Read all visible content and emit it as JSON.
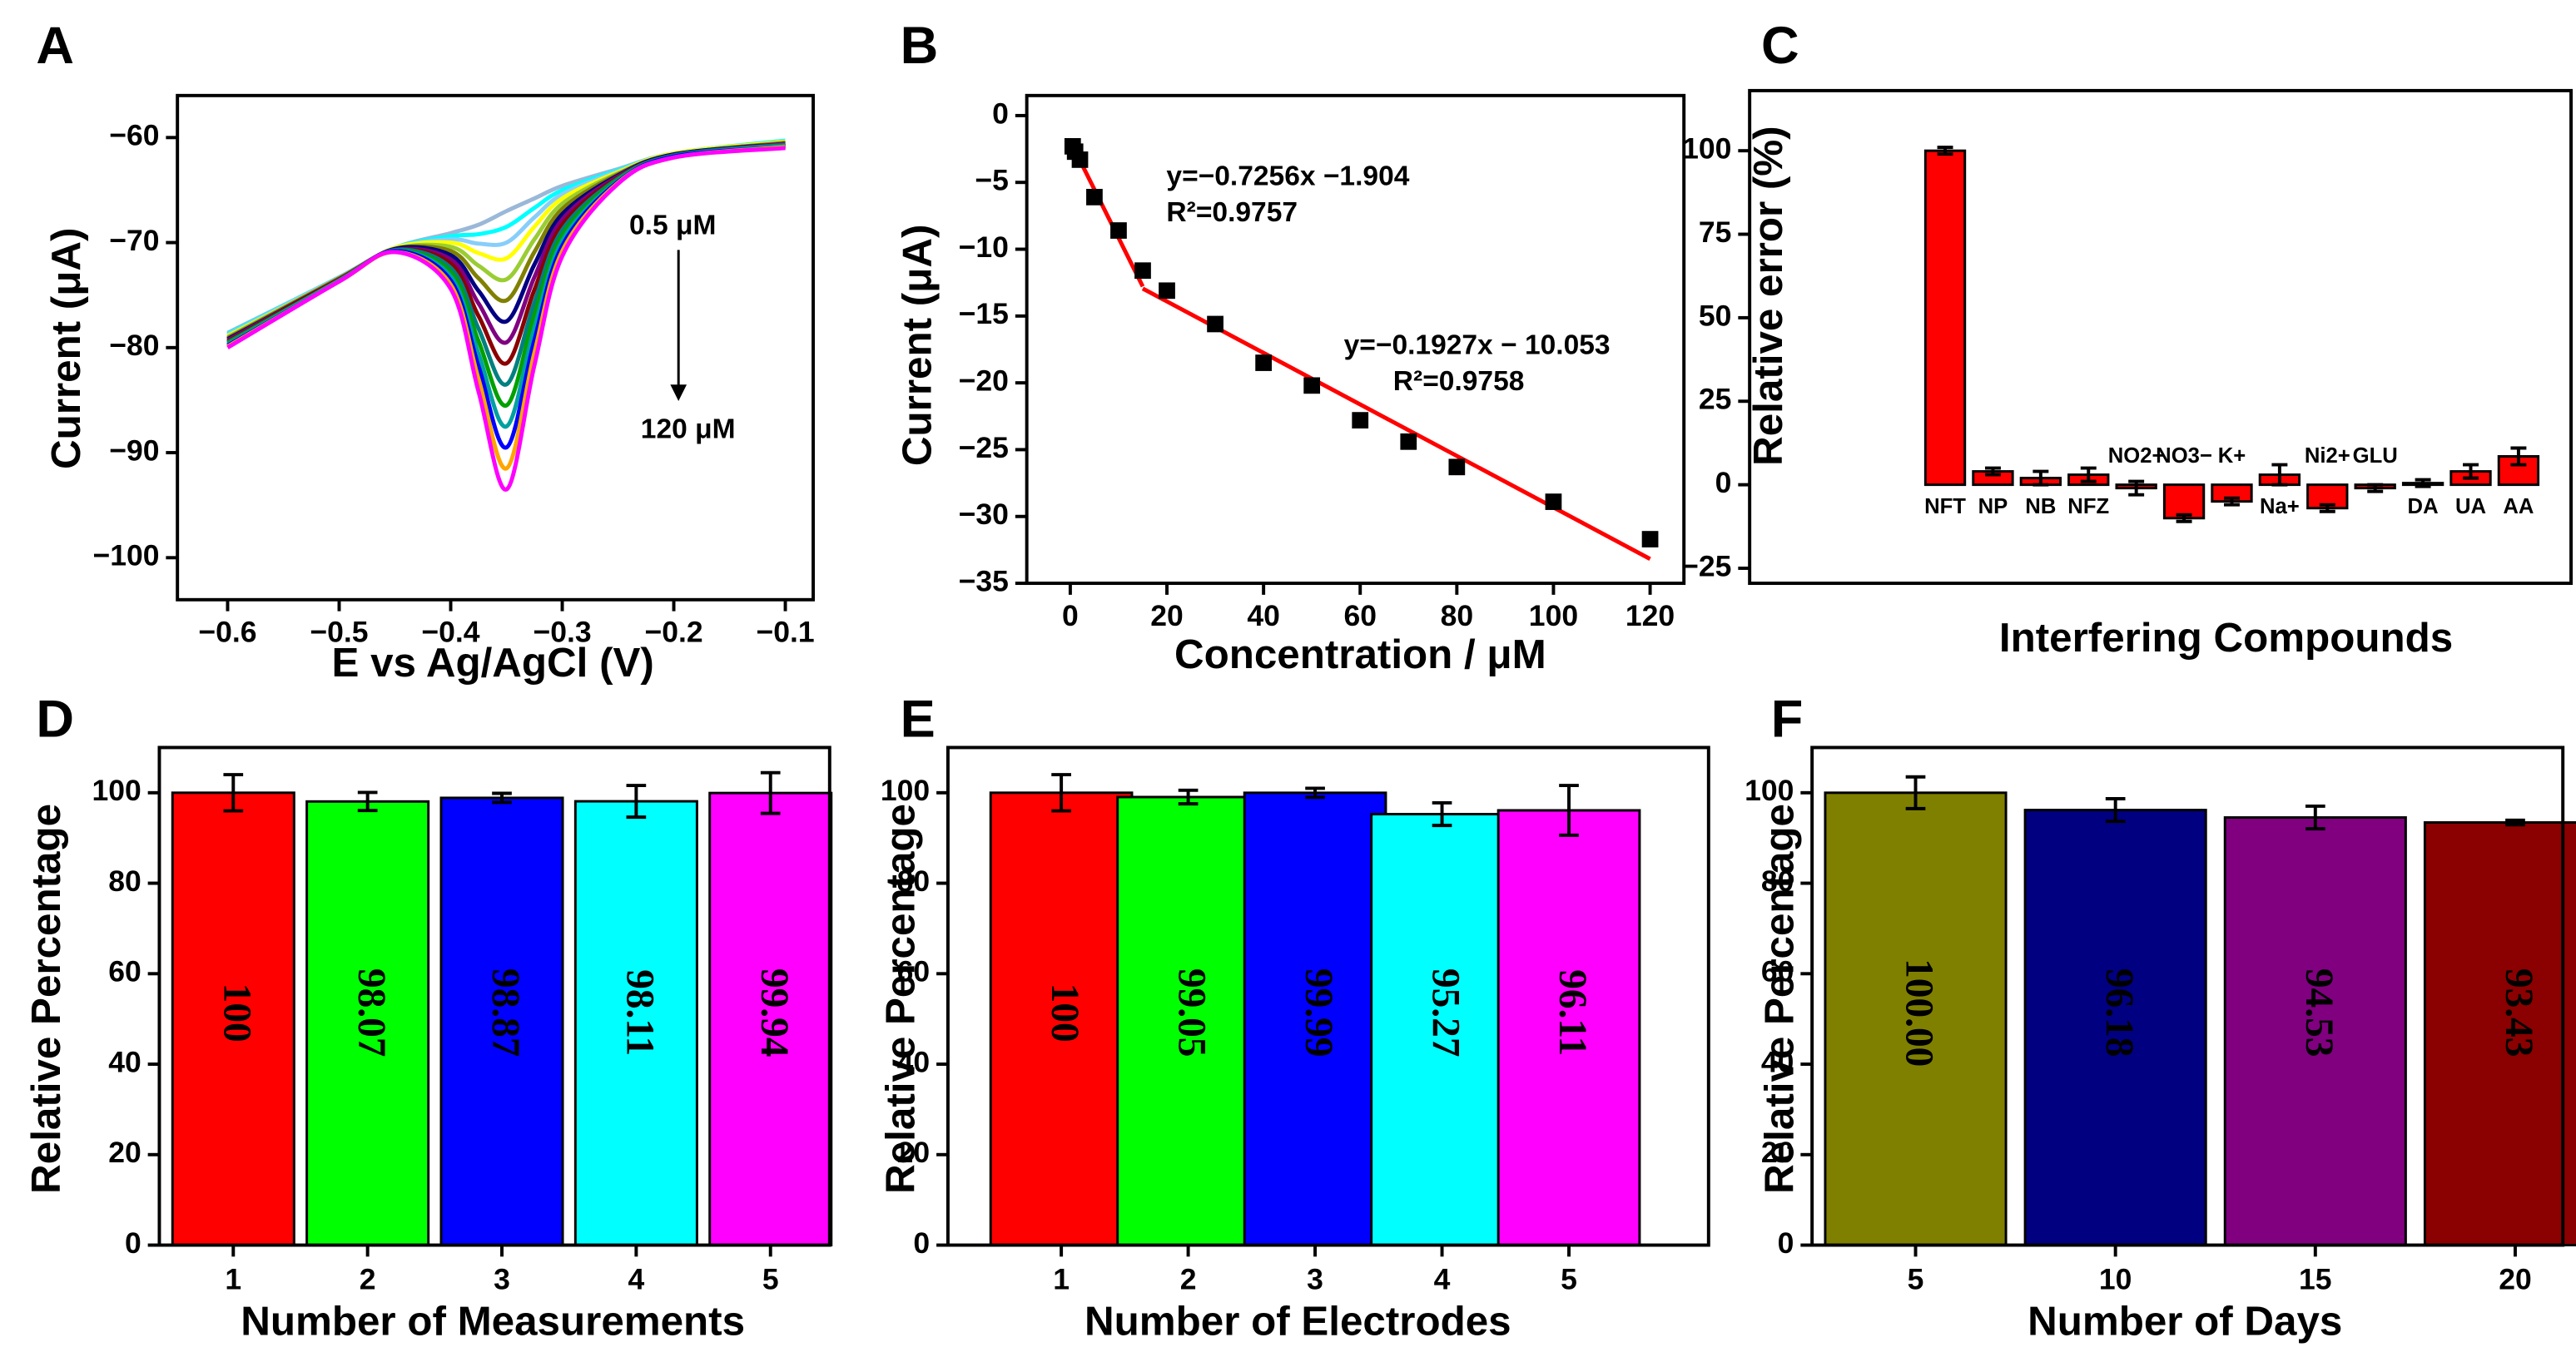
{
  "chart_data": [
    {
      "type": "line",
      "panel_label": "A",
      "x_label": "E vs Ag/AgCl (V)",
      "y_label": "Current (μA)",
      "x": [
        -0.6,
        -0.5,
        -0.45,
        -0.4,
        -0.375,
        -0.35,
        -0.325,
        -0.3,
        -0.25,
        -0.2,
        -0.1
      ],
      "series": [
        {
          "color": "#9ab8d8",
          "values": [
            -78.6,
            -73.3,
            -70.5,
            -69.1,
            -68.3,
            -67,
            -65.8,
            -64.6,
            -63,
            -61.5,
            -60.3
          ]
        },
        {
          "color": "#00ffff",
          "values": [
            -78.7,
            -73.3,
            -70.5,
            -69.4,
            -69.2,
            -68.5,
            -66.7,
            -65,
            -63.1,
            -61.5,
            -60.3
          ]
        },
        {
          "color": "#87cefa",
          "values": [
            -78.8,
            -73.3,
            -70.5,
            -69.7,
            -70.1,
            -70,
            -67.6,
            -65.4,
            -63.2,
            -61.5,
            -60.4
          ]
        },
        {
          "color": "#ffff00",
          "values": [
            -78.9,
            -73.4,
            -70.5,
            -70,
            -71,
            -71.5,
            -68.5,
            -65.8,
            -63.3,
            -61.5,
            -60.4
          ]
        },
        {
          "color": "#9acd32",
          "values": [
            -79,
            -73.4,
            -70.6,
            -70.4,
            -72.2,
            -73.5,
            -69.7,
            -66.3,
            -63.4,
            -61.6,
            -60.5
          ]
        },
        {
          "color": "#808000",
          "values": [
            -79.1,
            -73.4,
            -70.6,
            -70.8,
            -73.4,
            -75.5,
            -70.9,
            -66.8,
            -63.5,
            -61.6,
            -60.5
          ]
        },
        {
          "color": "#000080",
          "values": [
            -79.2,
            -73.5,
            -70.6,
            -71.2,
            -74.6,
            -77.5,
            -72.1,
            -67.3,
            -63.6,
            -61.6,
            -60.6
          ]
        },
        {
          "color": "#800080",
          "values": [
            -79.3,
            -73.5,
            -70.7,
            -71.6,
            -75.8,
            -79.5,
            -73.3,
            -67.8,
            -63.7,
            -61.7,
            -60.6
          ]
        },
        {
          "color": "#8b0000",
          "values": [
            -79.4,
            -73.5,
            -70.7,
            -72,
            -77,
            -81.5,
            -74.5,
            -68.3,
            -63.8,
            -61.7,
            -60.7
          ]
        },
        {
          "color": "#008080",
          "values": [
            -79.5,
            -73.6,
            -70.7,
            -72.4,
            -78.2,
            -83.5,
            -75.7,
            -68.8,
            -63.9,
            -61.7,
            -60.7
          ]
        },
        {
          "color": "#00a000",
          "values": [
            -79.6,
            -73.6,
            -70.8,
            -72.8,
            -79.4,
            -85.5,
            -76.9,
            -69.3,
            -64,
            -61.8,
            -60.8
          ]
        },
        {
          "color": "#00a0a0",
          "values": [
            -79.7,
            -73.6,
            -70.8,
            -73.2,
            -80.6,
            -87.5,
            -78.1,
            -69.8,
            -64.1,
            -61.8,
            -60.8
          ]
        },
        {
          "color": "#0000ff",
          "values": [
            -79.8,
            -73.7,
            -70.8,
            -73.6,
            -81.8,
            -89.5,
            -79.3,
            -70.3,
            -64.2,
            -61.8,
            -60.9
          ]
        },
        {
          "color": "#ffa500",
          "values": [
            -79.9,
            -73.7,
            -70.9,
            -74,
            -83,
            -91.5,
            -80.5,
            -70.8,
            -64.3,
            -61.9,
            -60.9
          ]
        },
        {
          "color": "#ff00ff",
          "values": [
            -80,
            -73.7,
            -70.9,
            -74.4,
            -84.2,
            -93.5,
            -81.7,
            -71.3,
            -64.4,
            -61.9,
            -61
          ]
        }
      ],
      "xlim": [
        -0.645,
        -0.075
      ],
      "ylim": [
        -104,
        -56
      ],
      "xticks": [
        {
          "value": -0.6,
          "label": "−0.6"
        },
        {
          "value": -0.5,
          "label": "−0.5"
        },
        {
          "value": -0.4,
          "label": "−0.4"
        },
        {
          "value": -0.3,
          "label": "−0.3"
        },
        {
          "value": -0.2,
          "label": "−0.2"
        },
        {
          "value": -0.1,
          "label": "−0.1"
        }
      ],
      "yticks": [
        {
          "value": -60,
          "label": "−60"
        },
        {
          "value": -70,
          "label": "−70"
        },
        {
          "value": -80,
          "label": "−80"
        },
        {
          "value": -90,
          "label": "−90"
        },
        {
          "value": -100,
          "label": "−100"
        }
      ],
      "annotations": [
        "0.5 μM",
        "120 μM"
      ]
    },
    {
      "type": "scatter",
      "panel_label": "B",
      "x_label": "Concentration / μM",
      "y_label": "Current (μA)",
      "points": {
        "color": "#000000",
        "x": [
          0.5,
          1,
          2,
          5,
          10,
          15,
          20,
          30,
          40,
          50,
          60,
          70,
          80,
          100,
          120
        ],
        "values": [
          -2.3,
          -2.7,
          -3.3,
          -6.1,
          -8.6,
          -11.6,
          -13.1,
          -15.6,
          -18.5,
          -20.2,
          -22.8,
          -24.4,
          -26.3,
          -28.9,
          -31.7
        ]
      },
      "fits": [
        {
          "color": "#ff0000",
          "x": [
            0.5,
            15
          ],
          "values": [
            -2.267,
            -12.788
          ]
        },
        {
          "color": "#ff0000",
          "x": [
            15,
            120
          ],
          "values": [
            -12.944,
            -33.177
          ]
        }
      ],
      "xlim": [
        -9,
        127
      ],
      "ylim": [
        -35,
        1.5
      ],
      "xticks": [
        0,
        20,
        40,
        60,
        80,
        100,
        120
      ],
      "yticks": [
        0,
        {
          "value": -5,
          "label": "−5"
        },
        {
          "value": -10,
          "label": "−10"
        },
        {
          "value": -15,
          "label": "−15"
        },
        {
          "value": -20,
          "label": "−20"
        },
        {
          "value": -25,
          "label": "−25"
        },
        {
          "value": -30,
          "label": "−30"
        },
        {
          "value": -35,
          "label": "−35"
        }
      ],
      "annotations": [
        "y=−0.7256x −1.904",
        "R²=0.9757",
        "y=−0.1927x − 10.053",
        "R²=0.9758"
      ]
    },
    {
      "type": "bar",
      "panel_label": "C",
      "x_label": "Interfering Compounds",
      "y_label": "Relative error (%)",
      "categories": [
        "NFT",
        "NP",
        "NB",
        "NFZ",
        "NO2−",
        "NO3−",
        "K+",
        "Na+",
        "Ni2+",
        "GLU",
        "DA",
        "UA",
        "AA"
      ],
      "values": [
        100,
        4,
        2,
        3,
        -1,
        -10,
        -5,
        3,
        -7,
        -1,
        0.5,
        4,
        8.5
      ],
      "errors": [
        1,
        1,
        2,
        2,
        2,
        1,
        1,
        3,
        1,
        1,
        1,
        2,
        2.5
      ],
      "color": "#ff0000",
      "ylim": [
        -29.5,
        118
      ],
      "yticks": [
        100,
        75,
        50,
        25,
        0,
        {
          "value": -25,
          "label": "−25"
        }
      ]
    },
    {
      "type": "bar",
      "panel_label": "D",
      "x_label": "Number of Measurements",
      "y_label": "Relative Percentage",
      "categories": [
        "1",
        "2",
        "3",
        "4",
        "5"
      ],
      "values": [
        100,
        98.07,
        98.87,
        98.11,
        99.94
      ],
      "errors": [
        4,
        2,
        1,
        3.5,
        4.5
      ],
      "colors": [
        "#ff0000",
        "#00ff00",
        "#0000ff",
        "#00ffff",
        "#ff00ff"
      ],
      "data_labels": true,
      "ylim": [
        0,
        110
      ],
      "yticks": [
        0,
        20,
        40,
        60,
        80,
        100
      ]
    },
    {
      "type": "bar",
      "panel_label": "E",
      "x_label": "Number of Electrodes",
      "y_label": "Relative Percentage",
      "categories": [
        "1",
        "2",
        "3",
        "4",
        "5"
      ],
      "values": [
        100,
        99.05,
        99.99,
        95.27,
        96.11
      ],
      "errors": [
        4,
        1.5,
        1,
        2.5,
        5.5
      ],
      "colors": [
        "#ff0000",
        "#00ff00",
        "#0000ff",
        "#00ffff",
        "#ff00ff"
      ],
      "data_labels": true,
      "ylim": [
        0,
        110
      ],
      "yticks": [
        0,
        20,
        40,
        60,
        80,
        100
      ]
    },
    {
      "type": "bar",
      "panel_label": "F",
      "x_label": "Number of Days",
      "y_label": "Relative Percentage",
      "categories": [
        "5",
        "10",
        "15",
        "20"
      ],
      "values": [
        100,
        96.18,
        94.53,
        93.43
      ],
      "value_labels": [
        "100.00",
        "96.18",
        "94.53",
        "93.43"
      ],
      "errors": [
        3.5,
        2.5,
        2.5,
        0.5
      ],
      "colors": [
        "#808000",
        "#000080",
        "#800080",
        "#8b0000"
      ],
      "data_labels": true,
      "ylim": [
        0,
        110
      ],
      "yticks": [
        0,
        20,
        40,
        60,
        80,
        100
      ]
    }
  ]
}
